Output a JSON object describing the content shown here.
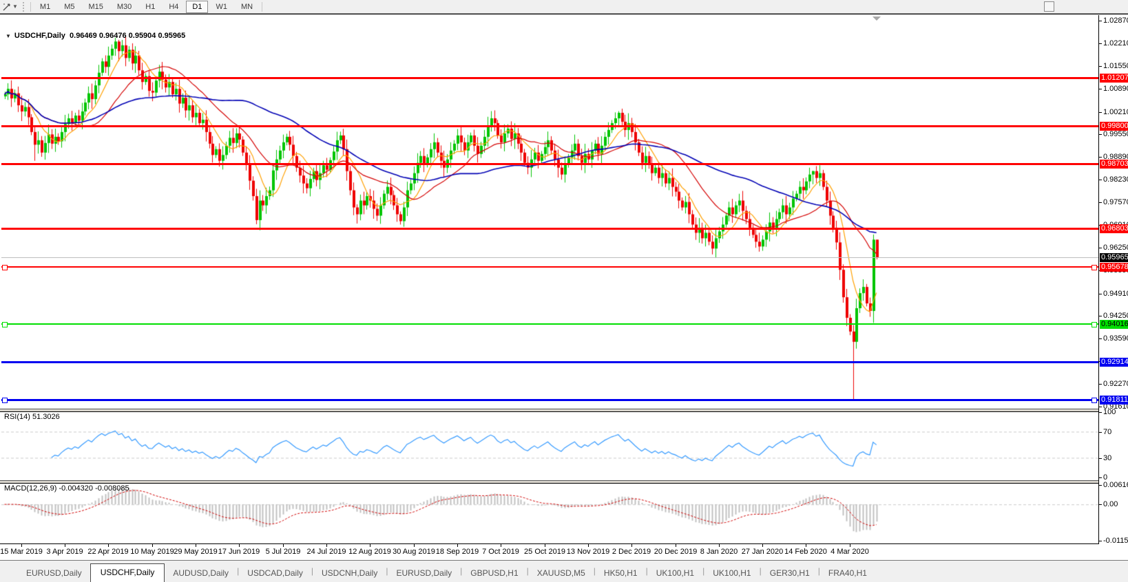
{
  "toolbar": {
    "tool_icon": "cursor-tool-icon",
    "timeframes": [
      {
        "label": "M1",
        "active": false
      },
      {
        "label": "M5",
        "active": false
      },
      {
        "label": "M15",
        "active": false
      },
      {
        "label": "M30",
        "active": false
      },
      {
        "label": "H1",
        "active": false
      },
      {
        "label": "H4",
        "active": false
      },
      {
        "label": "D1",
        "active": true
      },
      {
        "label": "W1",
        "active": false
      },
      {
        "label": "MN",
        "active": false
      }
    ]
  },
  "chart": {
    "symbol_title": "USDCHF,Daily",
    "ohlc_text": "0.96469 0.96476 0.95904 0.95965"
  },
  "chart_data": {
    "type": "candlestick",
    "symbol": "USDCHF",
    "timeframe": "Daily",
    "current_bar": {
      "open": "0.96469",
      "high": "0.96476",
      "low": "0.95904",
      "close": "0.95965"
    },
    "y_ticks": [
      "1.02870",
      "1.02210",
      "1.01550",
      "1.00890",
      "1.00210",
      "0.99550",
      "0.98890",
      "0.98230",
      "0.97570",
      "0.96910",
      "0.96250",
      "0.95590",
      "0.94910",
      "0.94250",
      "0.93590",
      "0.92930",
      "0.92270",
      "0.91610"
    ],
    "y_range": {
      "top": 1.0303,
      "bottom": 0.9155
    },
    "x_labels": [
      {
        "label": "15 Mar 2019",
        "i": 5
      },
      {
        "label": "3 Apr 2019",
        "i": 18
      },
      {
        "label": "22 Apr 2019",
        "i": 31
      },
      {
        "label": "10 May 2019",
        "i": 44
      },
      {
        "label": "29 May 2019",
        "i": 57
      },
      {
        "label": "17 Jun 2019",
        "i": 70
      },
      {
        "label": "5 Jul 2019",
        "i": 83
      },
      {
        "label": "24 Jul 2019",
        "i": 96
      },
      {
        "label": "12 Aug 2019",
        "i": 109
      },
      {
        "label": "30 Aug 2019",
        "i": 122
      },
      {
        "label": "18 Sep 2019",
        "i": 135
      },
      {
        "label": "7 Oct 2019",
        "i": 148
      },
      {
        "label": "25 Oct 2019",
        "i": 161
      },
      {
        "label": "13 Nov 2019",
        "i": 174
      },
      {
        "label": "2 Dec 2019",
        "i": 187
      },
      {
        "label": "20 Dec 2019",
        "i": 200
      },
      {
        "label": "8 Jan 2020",
        "i": 213
      },
      {
        "label": "27 Jan 2020",
        "i": 226
      },
      {
        "label": "14 Feb 2020",
        "i": 239
      },
      {
        "label": "4 Mar 2020",
        "i": 252
      }
    ],
    "hlines": [
      {
        "price": 1.01207,
        "label": "1.01207",
        "color": "#FF0000",
        "width": 3,
        "selected": false,
        "text": "#fff"
      },
      {
        "price": 0.998,
        "label": "0.99800",
        "color": "#FF0000",
        "width": 3,
        "selected": false,
        "text": "#fff"
      },
      {
        "price": 0.98703,
        "label": "0.98703",
        "color": "#FF0000",
        "width": 3,
        "selected": false,
        "text": "#fff"
      },
      {
        "price": 0.96803,
        "label": "0.96803",
        "color": "#FF0000",
        "width": 3,
        "selected": false,
        "text": "#fff"
      },
      {
        "price": 0.95678,
        "label": "0.95678",
        "color": "#FF0000",
        "width": 2,
        "selected": true,
        "text": "#fff"
      },
      {
        "price": 0.94016,
        "label": "0.94016",
        "color": "#00DE00",
        "width": 2,
        "selected": true,
        "text": "#000"
      },
      {
        "price": 0.92914,
        "label": "0.92914",
        "color": "#0000F0",
        "width": 3,
        "selected": false,
        "text": "#fff"
      },
      {
        "price": 0.91811,
        "label": "0.91811",
        "color": "#0000F0",
        "width": 3,
        "selected": true,
        "text": "#fff"
      }
    ],
    "current_price": {
      "price": 0.95965,
      "label": "0.95965",
      "badge_bg": "#000000",
      "badge_text": "#fff",
      "line_color": "#bdbdbd"
    },
    "colors": {
      "bull": "#00C400",
      "bear": "#EE0000",
      "ma_fast": "#FFA000",
      "ma_mid": "#D40000",
      "ma_slow": "#0000B4",
      "rsi_line": "#3399FF",
      "macd_hist": "#c0c0c0",
      "macd_signal": "#D00000"
    },
    "moving_averages": [
      {
        "name": "fast",
        "period": 8,
        "color_key": "ma_fast"
      },
      {
        "name": "medium",
        "period": 21,
        "color_key": "ma_mid"
      },
      {
        "name": "slow",
        "period": 55,
        "color_key": "ma_slow"
      }
    ],
    "closes": [
      1.0072,
      1.0088,
      1.006,
      1.0075,
      1.004,
      1.0022,
      1.0035,
      1.0005,
      0.9962,
      0.9925,
      0.9938,
      0.9902,
      0.993,
      0.9955,
      0.9928,
      0.9948,
      0.9935,
      0.9962,
      0.9985,
      1.0002,
      0.9988,
      1.001,
      0.9995,
      1.0022,
      1.0048,
      1.0075,
      1.0058,
      1.0098,
      1.0135,
      1.0168,
      1.0152,
      1.0185,
      1.0205,
      1.0226,
      1.0198,
      1.0215,
      1.0178,
      1.0202,
      1.0162,
      1.0185,
      1.0142,
      1.0108,
      1.0125,
      1.0082,
      1.0077,
      1.0112,
      1.0138,
      1.0115,
      1.0092,
      1.0108,
      1.0072,
      1.0088,
      1.0045,
      1.0062,
      1.0025,
      1.004,
      1.0005,
      1.0018,
      0.9988,
      0.9998,
      0.9962,
      0.9928,
      0.9895,
      0.9912,
      0.9878,
      0.9895,
      0.9922,
      0.9945,
      0.993,
      0.9958,
      0.994,
      0.9902,
      0.9868,
      0.982,
      0.9775,
      0.9705,
      0.9762,
      0.9748,
      0.9775,
      0.9792,
      0.985,
      0.9882,
      0.9908,
      0.9932,
      0.9948,
      0.9925,
      0.9892,
      0.9858,
      0.9835,
      0.9812,
      0.9798,
      0.9825,
      0.9848,
      0.9822,
      0.9842,
      0.9865,
      0.9852,
      0.988,
      0.9905,
      0.9938,
      0.9952,
      0.9912,
      0.9848,
      0.9792,
      0.9742,
      0.9722,
      0.9762,
      0.9748,
      0.9775,
      0.9762,
      0.9738,
      0.9718,
      0.9748,
      0.9782,
      0.9802,
      0.9778,
      0.9748,
      0.9722,
      0.9702,
      0.9742,
      0.9792,
      0.9812,
      0.9842,
      0.9872,
      0.9892,
      0.9868,
      0.9888,
      0.9912,
      0.9932,
      0.9902,
      0.9878,
      0.9858,
      0.9882,
      0.9908,
      0.9928,
      0.9952,
      0.9932,
      0.9908,
      0.9932,
      0.9952,
      0.9922,
      0.9898,
      0.9922,
      0.9948,
      0.9978,
      1.0002,
      0.9988,
      0.9952,
      0.9932,
      0.9958,
      0.9972,
      0.9942,
      0.9958,
      0.9928,
      0.9902,
      0.9872,
      0.9858,
      0.9882,
      0.9902,
      0.9878,
      0.9898,
      0.9918,
      0.9938,
      0.9908,
      0.9882,
      0.9858,
      0.9838,
      0.9868,
      0.9888,
      0.9908,
      0.9928,
      0.9892,
      0.9872,
      0.9898,
      0.9882,
      0.9908,
      0.9928,
      0.9898,
      0.9922,
      0.9948,
      0.9968,
      0.9988,
      1.0002,
      1.0018,
      0.9992,
      0.9968,
      0.9988,
      0.9962,
      0.9932,
      0.9902,
      0.9872,
      0.9892,
      0.9868,
      0.9842,
      0.9858,
      0.9828,
      0.9842,
      0.9812,
      0.9828,
      0.9802,
      0.9788,
      0.9762,
      0.9742,
      0.9758,
      0.9722,
      0.9692,
      0.9668,
      0.9682,
      0.9652,
      0.9668,
      0.9642,
      0.9622,
      0.9652,
      0.9672,
      0.9692,
      0.9718,
      0.9742,
      0.9722,
      0.9748,
      0.9762,
      0.9732,
      0.9708,
      0.9682,
      0.9662,
      0.9642,
      0.9628,
      0.9648,
      0.9672,
      0.9698,
      0.9682,
      0.9708,
      0.9728,
      0.9748,
      0.9722,
      0.9742,
      0.9768,
      0.9782,
      0.9802,
      0.9792,
      0.9818,
      0.9838,
      0.9848,
      0.9828,
      0.9842,
      0.9802,
      0.9762,
      0.9718,
      0.9682,
      0.964,
      0.956,
      0.948,
      0.942,
      0.938,
      0.935,
      0.9448,
      0.9492,
      0.951,
      0.9462,
      0.944,
      0.9648,
      0.95965
    ],
    "wick_overrides": {
      "9": {
        "l": 0.9878
      },
      "33": {
        "h": 1.0237
      },
      "34": {
        "h": 1.0231
      },
      "75": {
        "l": 0.9693
      },
      "105": {
        "l": 0.9695
      },
      "118": {
        "l": 0.9692
      },
      "145": {
        "h": 1.0023
      },
      "183": {
        "h": 1.0023
      },
      "211": {
        "l": 0.9605
      },
      "225": {
        "l": 0.9613
      },
      "241": {
        "h": 0.9849
      },
      "253": {
        "l": 0.91811
      },
      "254": {
        "l": 0.933
      },
      "259": {
        "h": 0.9663,
        "l": 0.9405
      },
      "260": {
        "h": 0.96476,
        "l": 0.95904
      }
    },
    "rsi": {
      "label": "RSI(14)",
      "value": "51.3026",
      "period": 14,
      "axis": [
        {
          "label": "100",
          "v": 100
        },
        {
          "label": "70",
          "v": 70
        },
        {
          "label": "30",
          "v": 30
        },
        {
          "label": "0",
          "v": 0
        }
      ],
      "levels": [
        70,
        30
      ]
    },
    "macd": {
      "label": "MACD(12,26,9)",
      "values": "-0.004320 -0.008085",
      "fast": 12,
      "slow": 26,
      "signal": 9,
      "axis": [
        {
          "label": "0.006167",
          "v": 0.006167
        },
        {
          "label": "0.00",
          "v": 0
        },
        {
          "label": "-0.011531",
          "v": -0.011531
        }
      ],
      "range": {
        "top": 0.0066,
        "bottom": -0.0122
      }
    }
  },
  "tabs": [
    {
      "label": "EURUSD,Daily",
      "active": false
    },
    {
      "label": "USDCHF,Daily",
      "active": true
    },
    {
      "label": "AUDUSD,Daily",
      "active": false
    },
    {
      "label": "USDCAD,Daily",
      "active": false
    },
    {
      "label": "USDCNH,Daily",
      "active": false
    },
    {
      "label": "EURUSD,Daily",
      "active": false
    },
    {
      "label": "GBPUSD,H1",
      "active": false
    },
    {
      "label": "XAUUSD,M5",
      "active": false
    },
    {
      "label": "HK50,H1",
      "active": false
    },
    {
      "label": "UK100,H1",
      "active": false
    },
    {
      "label": "UK100,H1",
      "active": false
    },
    {
      "label": "GER30,H1",
      "active": false
    },
    {
      "label": "FRA40,H1",
      "active": false
    }
  ]
}
